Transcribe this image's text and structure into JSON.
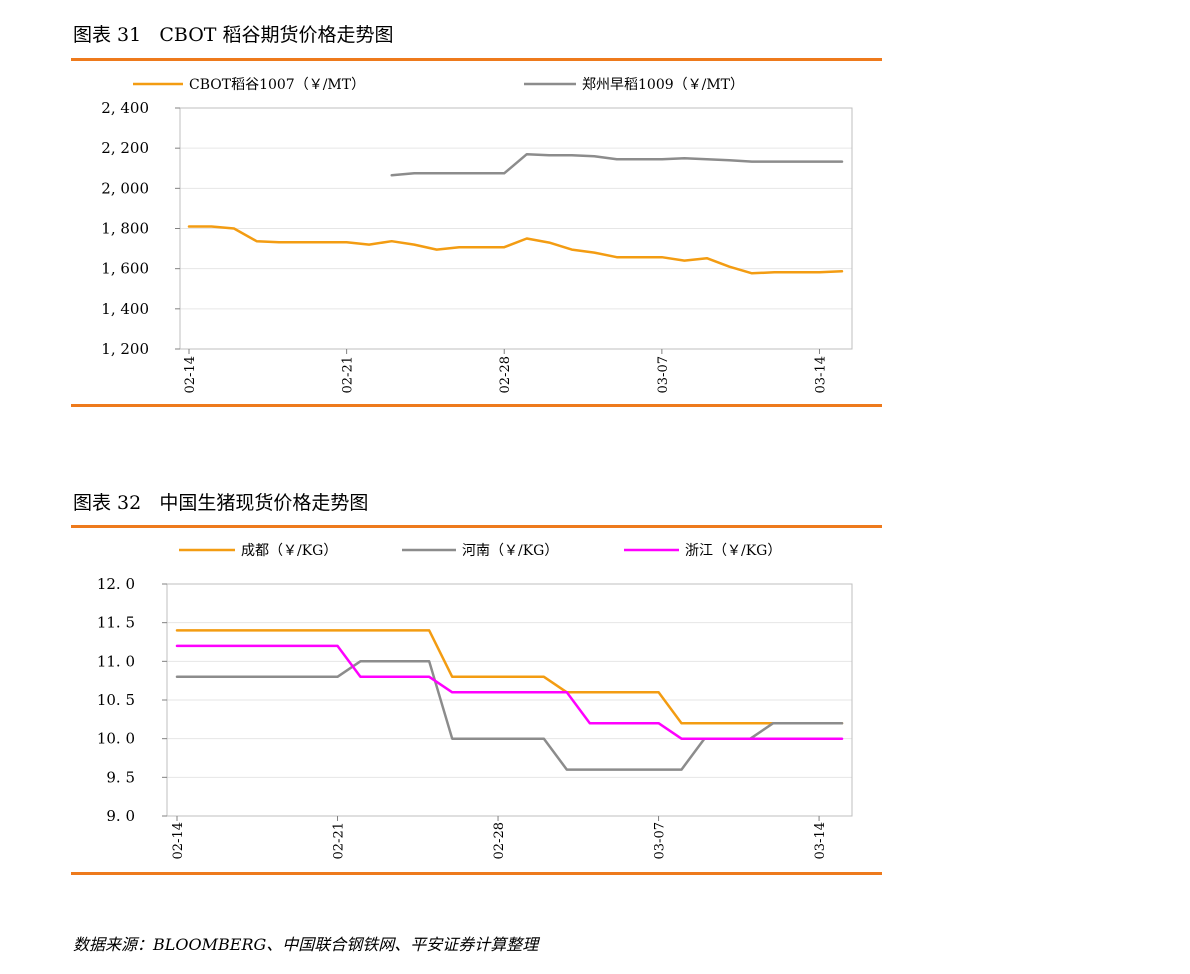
{
  "figures": [
    {
      "title": "图表 31   CBOT 稻谷期货价格走势图"
    },
    {
      "title": "图表 32   中国生猪现货价格走势图"
    }
  ],
  "source": "数据来源：BLOOMBERG、中国联合钢铁网、平安证券计算整理",
  "chart_data": [
    {
      "type": "line",
      "title": "CBOT 稻谷期货价格走势图",
      "ylim": [
        1200,
        2400
      ],
      "yticks": [
        1200,
        1400,
        1600,
        1800,
        2000,
        2200,
        2400
      ],
      "ytick_labels": [
        "1, 200",
        "1, 400",
        "1, 600",
        "1, 800",
        "2, 000",
        "2, 200",
        "2, 400"
      ],
      "xtick_labels": [
        "02-14",
        "02-21",
        "02-28",
        "03-07",
        "03-14"
      ],
      "xtick_positions": [
        0,
        7,
        14,
        21,
        28
      ],
      "n_points": 30,
      "legend_position": "top",
      "series": [
        {
          "name": "CBOT稻谷1007（￥/MT）",
          "color": "#f39c12",
          "values": [
            1810,
            1810,
            1800,
            1737,
            1732,
            1732,
            1732,
            1732,
            1720,
            1737,
            1720,
            1695,
            1707,
            1707,
            1707,
            1750,
            1730,
            1695,
            1680,
            1657,
            1657,
            1657,
            1640,
            1652,
            1610,
            1577,
            1582,
            1582,
            1582,
            1587
          ]
        },
        {
          "name": "郑州早稻1009（￥/MT）",
          "color": "#8c8c8c",
          "values": [
            null,
            null,
            null,
            null,
            null,
            null,
            null,
            null,
            null,
            2065,
            2075,
            2075,
            2075,
            2075,
            2075,
            2170,
            2165,
            2165,
            2160,
            2145,
            2145,
            2145,
            2150,
            2145,
            2140,
            2133,
            2133,
            2133,
            2133,
            2133
          ]
        }
      ]
    },
    {
      "type": "line",
      "title": "中国生猪现货价格走势图",
      "ylim": [
        9.0,
        12.0
      ],
      "yticks": [
        9.0,
        9.5,
        10.0,
        10.5,
        11.0,
        11.5,
        12.0
      ],
      "ytick_labels": [
        "9. 0",
        "9. 5",
        "10. 0",
        "10. 5",
        "11. 0",
        "11. 5",
        "12. 0"
      ],
      "xtick_labels": [
        "02-14",
        "02-21",
        "02-28",
        "03-07",
        "03-14"
      ],
      "xtick_positions": [
        0,
        7,
        14,
        21,
        28
      ],
      "n_points": 30,
      "legend_position": "top",
      "series": [
        {
          "name": "成都（￥/KG）",
          "color": "#f39c12",
          "values": [
            11.4,
            11.4,
            11.4,
            11.4,
            11.4,
            11.4,
            11.4,
            11.4,
            11.4,
            11.4,
            11.4,
            11.4,
            10.8,
            10.8,
            10.8,
            10.8,
            10.8,
            10.6,
            10.6,
            10.6,
            10.6,
            10.6,
            10.2,
            10.2,
            10.2,
            10.2,
            10.2,
            10.2,
            10.2,
            10.2
          ]
        },
        {
          "name": "河南（￥/KG）",
          "color": "#8c8c8c",
          "values": [
            10.8,
            10.8,
            10.8,
            10.8,
            10.8,
            10.8,
            10.8,
            10.8,
            11.0,
            11.0,
            11.0,
            11.0,
            10.0,
            10.0,
            10.0,
            10.0,
            10.0,
            9.6,
            9.6,
            9.6,
            9.6,
            9.6,
            9.6,
            10.0,
            10.0,
            10.0,
            10.2,
            10.2,
            10.2,
            10.2
          ]
        },
        {
          "name": "浙江（￥/KG）",
          "color": "#ff00ff",
          "values": [
            11.2,
            11.2,
            11.2,
            11.2,
            11.2,
            11.2,
            11.2,
            11.2,
            10.8,
            10.8,
            10.8,
            10.8,
            10.6,
            10.6,
            10.6,
            10.6,
            10.6,
            10.6,
            10.2,
            10.2,
            10.2,
            10.2,
            10.0,
            10.0,
            10.0,
            10.0,
            10.0,
            10.0,
            10.0,
            10.0
          ]
        }
      ]
    }
  ]
}
